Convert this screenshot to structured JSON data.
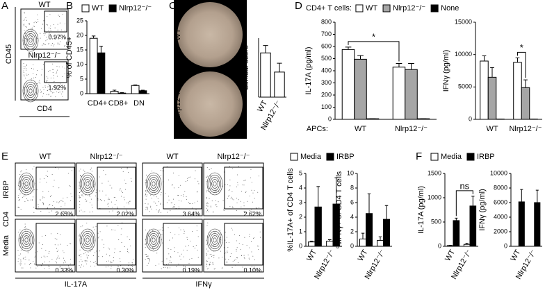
{
  "figure": {
    "panel_labels": [
      "A",
      "B",
      "C",
      "D",
      "E",
      "F"
    ],
    "A": {
      "rows": [
        "WT",
        "Nlrp12⁻/⁻"
      ],
      "gates": [
        "0.97%",
        "1.92%"
      ],
      "y_label": "CD45",
      "x_label": "CD4"
    },
    "C": {
      "rows": [
        "WT",
        "Nlrp12⁻/⁻"
      ]
    },
    "E": {
      "columns": [
        "WT",
        "Nlrp12⁻/⁻",
        "WT",
        "Nlrp12⁻/⁻"
      ],
      "rows": [
        "IRBP",
        "Media"
      ],
      "y_label": "CD4",
      "x_labels": [
        "IL-17A",
        "IFNγ"
      ],
      "gates": [
        [
          "2.65%",
          "2.02%",
          "3.64%",
          "2.62%"
        ],
        [
          "0.33%",
          "0.30%",
          "0.19%",
          "0.10%"
        ]
      ]
    }
  },
  "chart_data": [
    {
      "type": "bar",
      "ylabel": "% of CD45+",
      "categories": [
        "CD4+",
        "CD8+",
        "DN"
      ],
      "series": [
        {
          "name": "WT",
          "color": "#ffffff",
          "values": [
            19,
            0.8,
            2.8
          ],
          "errors": [
            0.8,
            0.4,
            0.2
          ]
        },
        {
          "name": "Nlrp12⁻/⁻",
          "color": "#000000",
          "values": [
            14,
            0.2,
            1.0
          ],
          "errors": [
            2.3,
            0.2,
            0.2
          ]
        }
      ],
      "ylim": [
        0,
        25
      ],
      "yticks": [
        0,
        5,
        10,
        15,
        20,
        25
      ]
    },
    {
      "type": "bar",
      "ylabel": "Clinical score",
      "categories": [
        "WT",
        "Nlrp12⁻/⁻"
      ],
      "series": [
        {
          "color": "#ffffff",
          "values": [
            1.5,
            0.85
          ],
          "errors": [
            0.25,
            0.3
          ]
        }
      ],
      "ylim": [
        0,
        2
      ]
    },
    {
      "type": "bar",
      "ylabel": "IL-17A (pg/ml)",
      "xlabel": "APCs:",
      "legend_title": "CD4+ T cells:",
      "annotation": "*",
      "categories": [
        "WT",
        "Nlrp12⁻/⁻"
      ],
      "series": [
        {
          "name": "WT",
          "color": "#ffffff",
          "values": [
            575,
            430
          ],
          "errors": [
            20,
            30
          ]
        },
        {
          "name": "Nlrp12⁻/⁻",
          "color": "#a6a6a6",
          "values": [
            495,
            410
          ],
          "errors": [
            30,
            50
          ]
        },
        {
          "name": "None",
          "color": "#000000",
          "values": [
            5,
            5
          ],
          "errors": [
            0,
            0
          ]
        }
      ],
      "ylim": [
        0,
        800
      ],
      "yticks": [
        0,
        100,
        200,
        300,
        400,
        500,
        600,
        700,
        800
      ]
    },
    {
      "type": "bar",
      "ylabel": "IFNγ (pg/ml)",
      "annotation": "*",
      "categories": [
        "WT",
        "Nlrp12⁻/⁻"
      ],
      "series": [
        {
          "color": "#ffffff",
          "values": [
            9000,
            8800
          ],
          "errors": [
            800,
            700
          ]
        },
        {
          "color": "#a6a6a6",
          "values": [
            6500,
            4900
          ],
          "errors": [
            1500,
            1200
          ]
        },
        {
          "color": "#000000",
          "values": [
            50,
            50
          ],
          "errors": [
            0,
            0
          ]
        }
      ],
      "ylim": [
        0,
        15000
      ],
      "yticks": [
        0,
        5000,
        10000,
        15000
      ]
    },
    {
      "type": "bar",
      "ylabel": "%IL-17A+ of CD4 T cells",
      "categories": [
        "WT",
        "Nlrp12⁻/⁻"
      ],
      "series": [
        {
          "name": "Media",
          "color": "#ffffff",
          "values": [
            0.3,
            0.35
          ],
          "errors": [
            0.05,
            0.1
          ]
        },
        {
          "name": "IRBP",
          "color": "#000000",
          "values": [
            2.7,
            2.9
          ],
          "errors": [
            1.4,
            1.8
          ]
        }
      ],
      "ylim": [
        0,
        5
      ],
      "yticks": [
        0,
        1,
        2,
        3,
        4,
        5
      ]
    },
    {
      "type": "bar",
      "ylabel": "%IFNγ+ of CD4 T cells",
      "categories": [
        "WT",
        "Nlrp12⁻/⁻"
      ],
      "series": [
        {
          "color": "#ffffff",
          "values": [
            1.0,
            0.8
          ],
          "errors": [
            0.8,
            0.5
          ]
        },
        {
          "color": "#000000",
          "values": [
            4.5,
            3.7
          ],
          "errors": [
            2.7,
            1.9
          ]
        }
      ],
      "ylim": [
        0,
        10
      ],
      "yticks": [
        0,
        2,
        4,
        6,
        8,
        10
      ]
    },
    {
      "type": "bar",
      "ylabel": "IL-17A (pg/ml)",
      "annotation": "ns",
      "categories": [
        "WT",
        "Nlrp12⁻/⁻"
      ],
      "series": [
        {
          "name": "Media",
          "color": "#ffffff",
          "values": [
            15,
            40
          ],
          "errors": [
            5,
            20
          ]
        },
        {
          "name": "IRBP",
          "color": "#000000",
          "values": [
            530,
            830
          ],
          "errors": [
            50,
            200
          ]
        }
      ],
      "ylim": [
        0,
        1500
      ],
      "yticks": [
        0,
        500,
        1000,
        1500
      ]
    },
    {
      "type": "bar",
      "ylabel": "IFNγ (pg/ml)",
      "categories": [
        "WT",
        "Nlrp12⁻/⁻"
      ],
      "series": [
        {
          "color": "#ffffff",
          "values": [
            0,
            0
          ],
          "errors": [
            0,
            0
          ]
        },
        {
          "color": "#000000",
          "values": [
            6100,
            6000
          ],
          "errors": [
            1700,
            1700
          ]
        }
      ],
      "ylim": [
        0,
        10000
      ],
      "yticks": [
        0,
        2000,
        4000,
        6000,
        8000,
        10000
      ]
    }
  ]
}
